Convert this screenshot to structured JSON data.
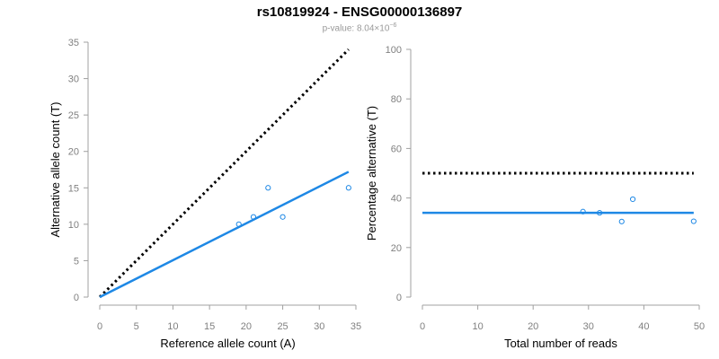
{
  "header": {
    "title": "rs10819924 - ENSG00000136897",
    "pvalue_prefix": "p-value: 8.04×10",
    "pvalue_exponent": "−6"
  },
  "colors": {
    "points": "#1e88e5",
    "fit_line": "#1e88e5",
    "reference_line": "#000000",
    "axis": "#a0a0a0",
    "tick_label": "#808080"
  },
  "chart_data": [
    {
      "type": "scatter",
      "xlabel": "Reference allele count (A)",
      "ylabel": "Alternative allele count (T)",
      "xlim": [
        0,
        35
      ],
      "ylim": [
        0,
        35
      ],
      "xticks": [
        0,
        5,
        10,
        15,
        20,
        25,
        30,
        35
      ],
      "yticks": [
        0,
        5,
        10,
        15,
        20,
        25,
        30,
        35
      ],
      "grid": false,
      "points": [
        {
          "x": 19,
          "y": 10
        },
        {
          "x": 21,
          "y": 11
        },
        {
          "x": 23,
          "y": 15
        },
        {
          "x": 25,
          "y": 11
        },
        {
          "x": 34,
          "y": 15
        }
      ],
      "fit_line": [
        [
          0,
          0
        ],
        [
          34,
          17.2
        ]
      ],
      "reference_line": [
        [
          0,
          0
        ],
        [
          34,
          34
        ]
      ]
    },
    {
      "type": "scatter",
      "xlabel": "Total number of reads",
      "ylabel": "Percentage alternative (T)",
      "xlim": [
        0,
        50
      ],
      "ylim": [
        0,
        100
      ],
      "xticks": [
        0,
        10,
        20,
        30,
        40,
        50
      ],
      "yticks": [
        0,
        20,
        40,
        60,
        80,
        100
      ],
      "grid": false,
      "points": [
        {
          "x": 29,
          "y": 34.5
        },
        {
          "x": 32,
          "y": 34
        },
        {
          "x": 36,
          "y": 30.5
        },
        {
          "x": 38,
          "y": 39.5
        },
        {
          "x": 49,
          "y": 30.6
        }
      ],
      "fit_line": [
        [
          0,
          34
        ],
        [
          49,
          34
        ]
      ],
      "reference_line": [
        [
          0,
          50
        ],
        [
          49,
          50
        ]
      ]
    }
  ]
}
